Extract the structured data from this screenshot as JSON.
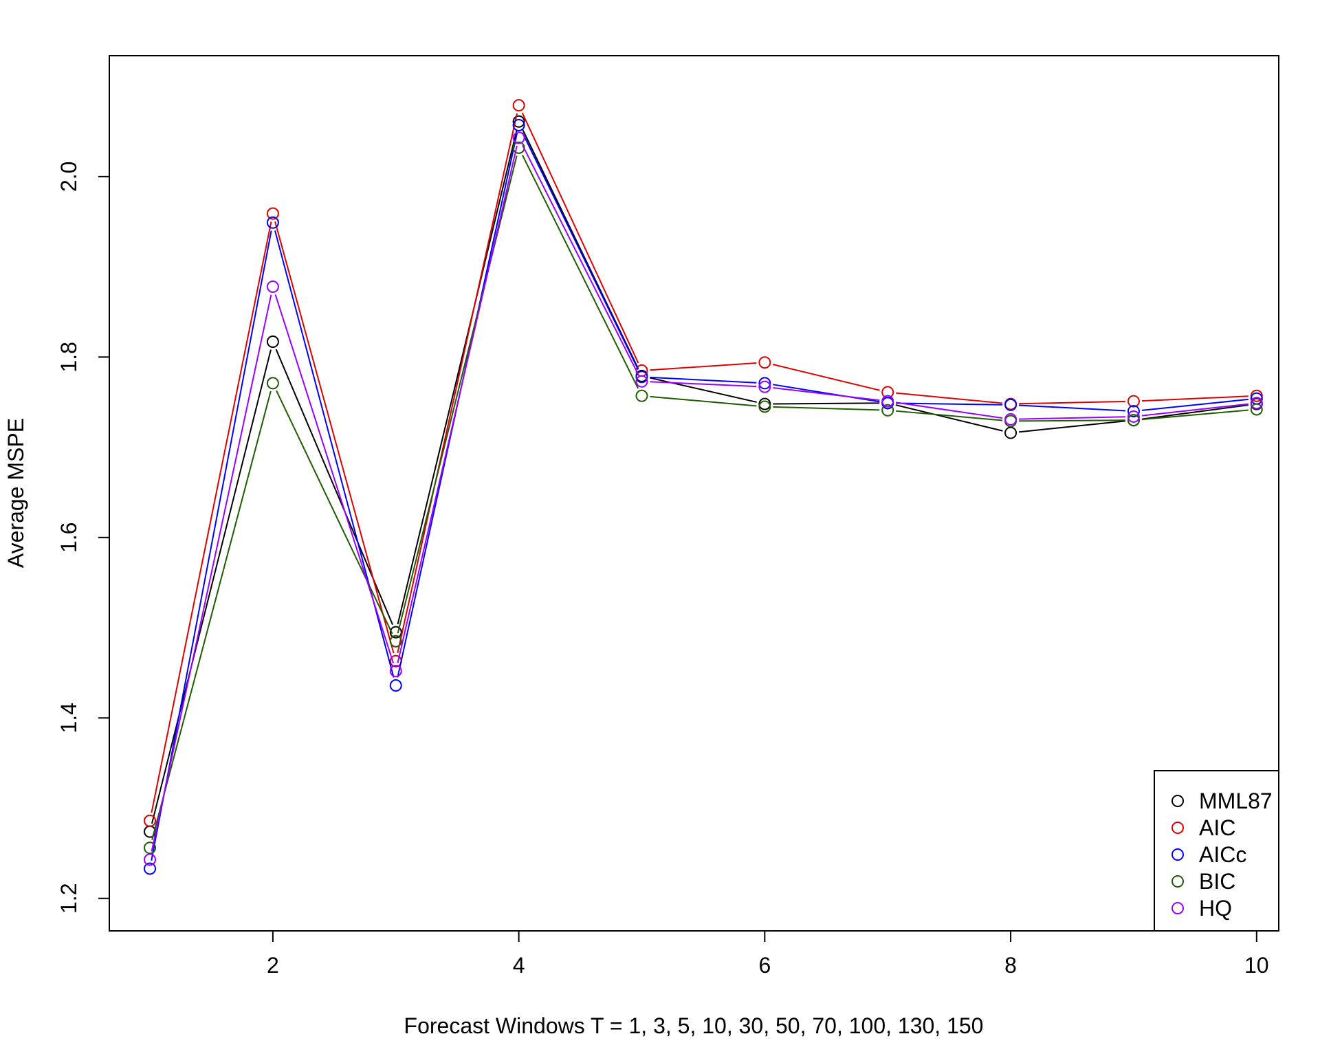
{
  "chart_data": {
    "type": "line",
    "title": "",
    "xlabel": "Forecast Windows T = 1, 3, 5, 10, 30, 50, 70, 100, 130, 150",
    "ylabel": "Average MSPE",
    "x": [
      1,
      2,
      3,
      4,
      5,
      6,
      7,
      8,
      9,
      10
    ],
    "xlim": [
      0.67,
      10.18
    ],
    "ylim": [
      1.164,
      2.134
    ],
    "x_ticks": [
      2,
      4,
      6,
      8,
      10
    ],
    "y_ticks": [
      1.2,
      1.4,
      1.6,
      1.8,
      2.0
    ],
    "x_tick_labels": [
      "2",
      "4",
      "6",
      "8",
      "10"
    ],
    "y_tick_labels": [
      "1.2",
      "1.4",
      "1.6",
      "1.8",
      "2.0"
    ],
    "grid": false,
    "legend_position": "bottom-right",
    "marker": "open-circle",
    "series": [
      {
        "name": "MML87",
        "color": "#000000",
        "values": [
          1.274,
          1.817,
          1.495,
          2.061,
          1.779,
          1.748,
          1.749,
          1.716,
          1.73,
          1.748
        ]
      },
      {
        "name": "AIC",
        "color": "#DF0000",
        "values": [
          1.286,
          1.959,
          1.463,
          2.079,
          1.785,
          1.794,
          1.761,
          1.748,
          1.751,
          1.757
        ]
      },
      {
        "name": "AICc",
        "color": "#0000FF",
        "values": [
          1.233,
          1.949,
          1.436,
          2.057,
          1.778,
          1.771,
          1.749,
          1.747,
          1.74,
          1.754
        ]
      },
      {
        "name": "BIC",
        "color": "#1E5C00",
        "values": [
          1.256,
          1.771,
          1.485,
          2.032,
          1.757,
          1.745,
          1.741,
          1.729,
          1.73,
          1.742
        ]
      },
      {
        "name": "HQ",
        "color": "#9A00FF",
        "values": [
          1.243,
          1.878,
          1.452,
          2.043,
          1.773,
          1.767,
          1.751,
          1.731,
          1.734,
          1.749
        ]
      }
    ]
  }
}
